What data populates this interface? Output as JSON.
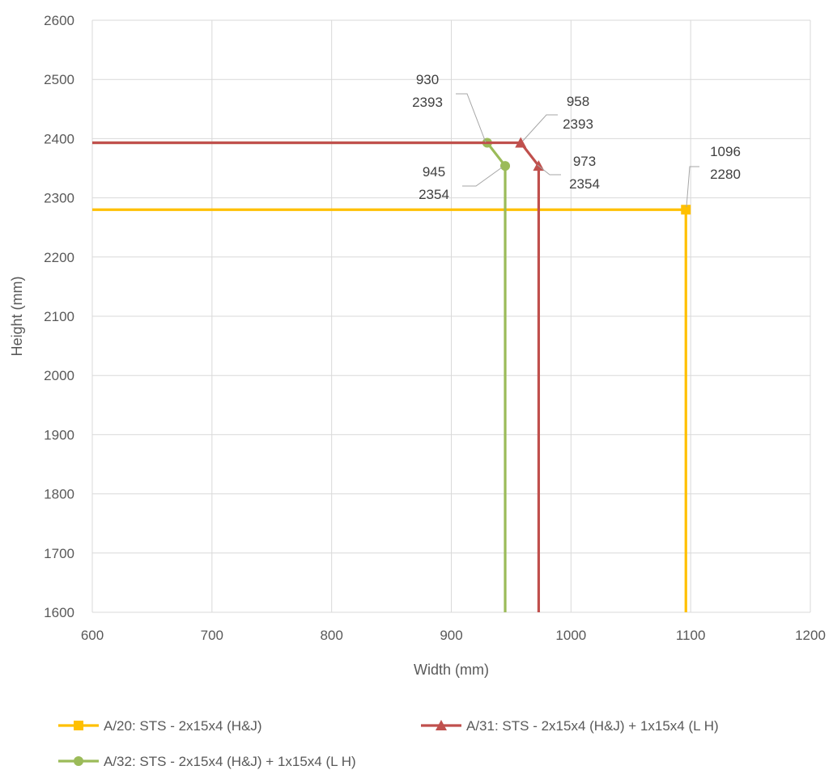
{
  "chart_data": {
    "type": "line",
    "xlabel": "Width (mm)",
    "ylabel": "Height (mm)",
    "xlim": [
      600,
      1200
    ],
    "ylim": [
      1600,
      2600
    ],
    "xticks": [
      600,
      700,
      800,
      900,
      1000,
      1100,
      1200
    ],
    "yticks": [
      1600,
      1700,
      1800,
      1900,
      2000,
      2100,
      2200,
      2300,
      2400,
      2500,
      2600
    ],
    "grid": true,
    "legend_position": "bottom",
    "series": [
      {
        "name": "A/20: STS - 2x15x4 (H&J)",
        "color": "#FFC000",
        "marker": "square",
        "points": [
          [
            600,
            2280
          ],
          [
            1096,
            2280
          ],
          [
            1096,
            1600
          ]
        ],
        "marked": [
          [
            1096,
            2280
          ]
        ],
        "labels": [
          {
            "x": 1096,
            "y": 2280,
            "text": [
              "1096",
              "2280"
            ]
          }
        ]
      },
      {
        "name": "A/31: STS - 2x15x4 (H&J) + 1x15x4 (L H)",
        "color": "#C0504D",
        "marker": "triangle",
        "points": [
          [
            600,
            2393
          ],
          [
            958,
            2393
          ],
          [
            973,
            2354
          ],
          [
            973,
            1600
          ]
        ],
        "marked": [
          [
            958,
            2393
          ],
          [
            973,
            2354
          ]
        ],
        "labels": [
          {
            "x": 958,
            "y": 2393,
            "text": [
              "958",
              "2393"
            ]
          },
          {
            "x": 973,
            "y": 2354,
            "text": [
              "973",
              "2354"
            ]
          }
        ]
      },
      {
        "name": "A/32: STS - 2x15x4 (H&J) + 1x15x4 (L H)",
        "color": "#9BBB59",
        "marker": "circle",
        "points": [
          [
            600,
            2393
          ],
          [
            930,
            2393
          ],
          [
            945,
            2354
          ],
          [
            945,
            1600
          ]
        ],
        "marked": [
          [
            930,
            2393
          ],
          [
            945,
            2354
          ]
        ],
        "labels": [
          {
            "x": 930,
            "y": 2393,
            "text": [
              "930",
              "2393"
            ]
          },
          {
            "x": 945,
            "y": 2354,
            "text": [
              "945",
              "2354"
            ]
          }
        ]
      }
    ]
  }
}
